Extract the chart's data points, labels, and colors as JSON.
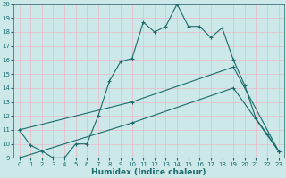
{
  "xlabel": "Humidex (Indice chaleur)",
  "xlim": [
    -0.5,
    23.5
  ],
  "ylim": [
    9,
    20
  ],
  "xticks": [
    0,
    1,
    2,
    3,
    4,
    5,
    6,
    7,
    8,
    9,
    10,
    11,
    12,
    13,
    14,
    15,
    16,
    17,
    18,
    19,
    20,
    21,
    22,
    23
  ],
  "yticks": [
    9,
    10,
    11,
    12,
    13,
    14,
    15,
    16,
    17,
    18,
    19,
    20
  ],
  "bg_color": "#cce8e8",
  "grid_color": "#e8b8c8",
  "line_color": "#1a6b6b",
  "line1_x": [
    0,
    1,
    2,
    3,
    4,
    5,
    6,
    7,
    8,
    9,
    10,
    11,
    12,
    13,
    14,
    15,
    16,
    17,
    18,
    19,
    20,
    21,
    22,
    23
  ],
  "line1_y": [
    11,
    9.9,
    9.5,
    9,
    9,
    10,
    10,
    12,
    14.5,
    15.9,
    16.1,
    18.7,
    18,
    18.4,
    20,
    18.4,
    18.4,
    17.6,
    18.3,
    16,
    14.2,
    11.8,
    10.7,
    9.5
  ],
  "line2_x": [
    0,
    10,
    19,
    23
  ],
  "line2_y": [
    11,
    13,
    15.5,
    9.5
  ],
  "line3_x": [
    0,
    10,
    19,
    23
  ],
  "line3_y": [
    9,
    11.5,
    14,
    9.5
  ],
  "tick_fontsize": 5.0,
  "xlabel_fontsize": 6.5,
  "title_fontsize": 6.5
}
